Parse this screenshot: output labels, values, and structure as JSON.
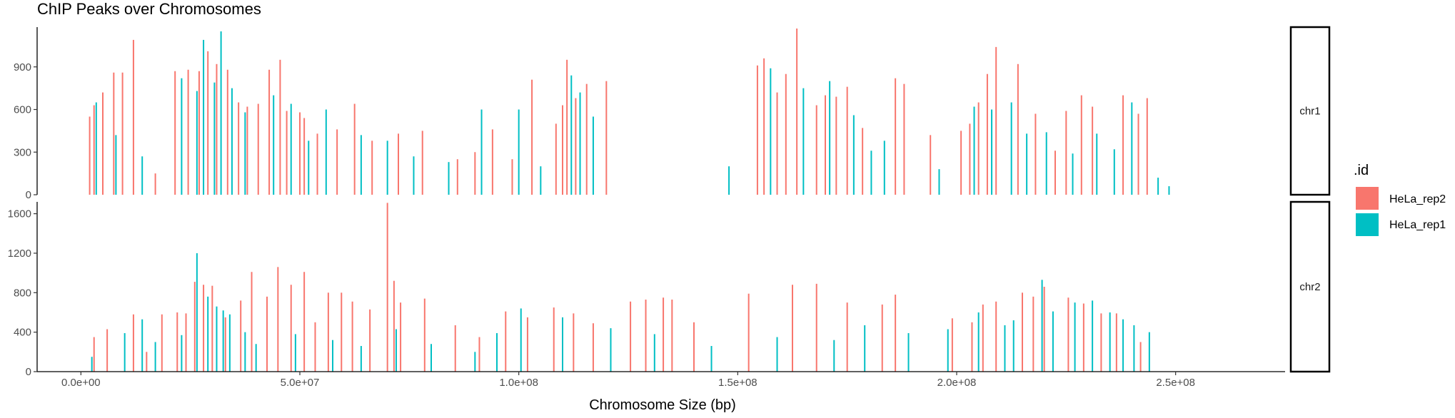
{
  "chart_data": {
    "type": "bar",
    "title": "ChIP Peaks over Chromosomes",
    "xlabel": "Chromosome Size (bp)",
    "ylabel": "",
    "xlim": [
      -10000000,
      275000000
    ],
    "x_ticks": [
      0,
      50000000,
      100000000,
      150000000,
      200000000,
      250000000
    ],
    "x_tick_labels": [
      "0.0e+00",
      "5.0e+07",
      "1.0e+08",
      "1.5e+08",
      "2.0e+08",
      "2.5e+08"
    ],
    "bar_width": 240000,
    "legend": {
      "title": ".id",
      "placement": "right",
      "entries": [
        {
          "label": "HeLa_rep2",
          "color": "#f8766d"
        },
        {
          "label": "HeLa_rep1",
          "color": "#00bfc4"
        }
      ]
    },
    "panels": [
      {
        "strip": "chr1",
        "ylim": [
          0,
          1180
        ],
        "y_ticks": [
          0,
          300,
          600,
          900
        ],
        "y_tick_labels": [
          "0",
          "300",
          "600",
          "900"
        ],
        "series": [
          {
            "name": "HeLa_rep2",
            "color": "#f8766d",
            "x": [
              2000000.0,
              3000000.0,
              5000000.0,
              7500000.0,
              9500000.0,
              12000000.0,
              17000000.0,
              21500000.0,
              24500000.0,
              27000000.0,
              29000000.0,
              31000000.0,
              33500000.0,
              36000000.0,
              38000000.0,
              40500000.0,
              43000000.0,
              45500000.0,
              47000000.0,
              50000000.0,
              51000000.0,
              54000000.0,
              58500000.0,
              62500000.0,
              66500000.0,
              72500000.0,
              78000000.0,
              86000000.0,
              90000000.0,
              94000000.0,
              98500000.0,
              103000000.0,
              108500000.0,
              110000000.0,
              111000000.0,
              113000000.0,
              115500000.0,
              120000000.0,
              154500000.0,
              156000000.0,
              159000000.0,
              161000000.0,
              163500000.0,
              168000000.0,
              170000000.0,
              172500000.0,
              175000000.0,
              178500000.0,
              186000000.0,
              188000000.0,
              194000000.0,
              201000000.0,
              203000000.0,
              205000000.0,
              207000000.0,
              209000000.0,
              214000000.0,
              218000000.0,
              222500000.0,
              225000000.0,
              228500000.0,
              231000000.0,
              238000000.0,
              241500000.0,
              243500000.0
            ],
            "values": [
              550,
              630,
              720,
              860,
              860,
              1090,
              150,
              870,
              880,
              870,
              1010,
              920,
              880,
              650,
              620,
              640,
              880,
              950,
              590,
              580,
              540,
              430,
              460,
              640,
              380,
              430,
              450,
              250,
              300,
              460,
              250,
              810,
              500,
              630,
              950,
              680,
              780,
              800,
              910,
              960,
              720,
              850,
              1170,
              630,
              700,
              690,
              760,
              470,
              820,
              780,
              420,
              450,
              500,
              650,
              850,
              1040,
              920,
              570,
              310,
              590,
              700,
              620,
              700,
              570,
              680
            ]
          },
          {
            "name": "HeLa_rep1",
            "color": "#00bfc4",
            "x": [
              3500000.0,
              8000000.0,
              14000000.0,
              23000000.0,
              26500000.0,
              28000000.0,
              30500000.0,
              32000000.0,
              34500000.0,
              37500000.0,
              44000000.0,
              48000000.0,
              52000000.0,
              56000000.0,
              64000000.0,
              70000000.0,
              76000000.0,
              84000000.0,
              91500000.0,
              100000000.0,
              105000000.0,
              112000000.0,
              114000000.0,
              117000000.0,
              148000000.0,
              157500000.0,
              165000000.0,
              171000000.0,
              176500000.0,
              180500000.0,
              183500000.0,
              196000000.0,
              204000000.0,
              208000000.0,
              212500000.0,
              216000000.0,
              220500000.0,
              226500000.0,
              232000000.0,
              236000000.0,
              240000000.0,
              246000000.0,
              248500000.0
            ],
            "values": [
              650,
              420,
              270,
              820,
              730,
              1090,
              790,
              1150,
              750,
              580,
              700,
              640,
              380,
              600,
              420,
              380,
              270,
              230,
              600,
              600,
              200,
              840,
              720,
              550,
              200,
              890,
              750,
              800,
              560,
              310,
              380,
              180,
              620,
              600,
              650,
              430,
              440,
              290,
              430,
              320,
              650,
              120,
              60
            ]
          }
        ]
      },
      {
        "strip": "chr2",
        "ylim": [
          0,
          1720
        ],
        "y_ticks": [
          0,
          400,
          800,
          1200,
          1600
        ],
        "y_tick_labels": [
          "0",
          "400",
          "800",
          "1200",
          "1600"
        ],
        "series": [
          {
            "name": "HeLa_rep2",
            "color": "#f8766d",
            "x": [
              3000000.0,
              6000000.0,
              12000000.0,
              15000000.0,
              18500000.0,
              22000000.0,
              24000000.0,
              26000000.0,
              28000000.0,
              30000000.0,
              33000000.0,
              36500000.0,
              39000000.0,
              42500000.0,
              45000000.0,
              48000000.0,
              51000000.0,
              53500000.0,
              56500000.0,
              59500000.0,
              62000000.0,
              66000000.0,
              70000000.0,
              71500000.0,
              73000000.0,
              78500000.0,
              85500000.0,
              91000000.0,
              97000000.0,
              102000000.0,
              108000000.0,
              112500000.0,
              117000000.0,
              125500000.0,
              129000000.0,
              133000000.0,
              135000000.0,
              140000000.0,
              152500000.0,
              162500000.0,
              168000000.0,
              175000000.0,
              183000000.0,
              186000000.0,
              199000000.0,
              203500000.0,
              206000000.0,
              209000000.0,
              215000000.0,
              217500000.0,
              220000000.0,
              225500000.0,
              229000000.0,
              233000000.0,
              236500000.0,
              242000000.0
            ],
            "values": [
              350,
              430,
              580,
              200,
              580,
              600,
              590,
              910,
              880,
              870,
              550,
              720,
              1010,
              760,
              1060,
              880,
              1010,
              500,
              800,
              800,
              710,
              630,
              1710,
              920,
              700,
              740,
              470,
              350,
              610,
              550,
              650,
              590,
              490,
              710,
              730,
              750,
              730,
              500,
              790,
              880,
              890,
              700,
              680,
              780,
              540,
              500,
              680,
              710,
              800,
              760,
              860,
              750,
              690,
              590,
              590,
              300
            ]
          },
          {
            "name": "HeLa_rep1",
            "color": "#00bfc4",
            "x": [
              2500000.0,
              10000000.0,
              14000000.0,
              17000000.0,
              23000000.0,
              26500000.0,
              29000000.0,
              31000000.0,
              32500000.0,
              34000000.0,
              37500000.0,
              40000000.0,
              49000000.0,
              57500000.0,
              64000000.0,
              72000000.0,
              80000000.0,
              90000000.0,
              95000000.0,
              100500000.0,
              110000000.0,
              121000000.0,
              131000000.0,
              144000000.0,
              159000000.0,
              172000000.0,
              179000000.0,
              189000000.0,
              198000000.0,
              205000000.0,
              211000000.0,
              213000000.0,
              219500000.0,
              222000000.0,
              227000000.0,
              231000000.0,
              235000000.0,
              238000000.0,
              240500000.0,
              244000000.0
            ],
            "values": [
              150,
              390,
              530,
              300,
              370,
              1200,
              760,
              660,
              620,
              580,
              400,
              280,
              380,
              320,
              260,
              430,
              280,
              200,
              390,
              640,
              550,
              440,
              380,
              260,
              350,
              320,
              470,
              390,
              430,
              600,
              470,
              520,
              930,
              610,
              700,
              720,
              600,
              530,
              470,
              400
            ]
          }
        ]
      }
    ]
  }
}
